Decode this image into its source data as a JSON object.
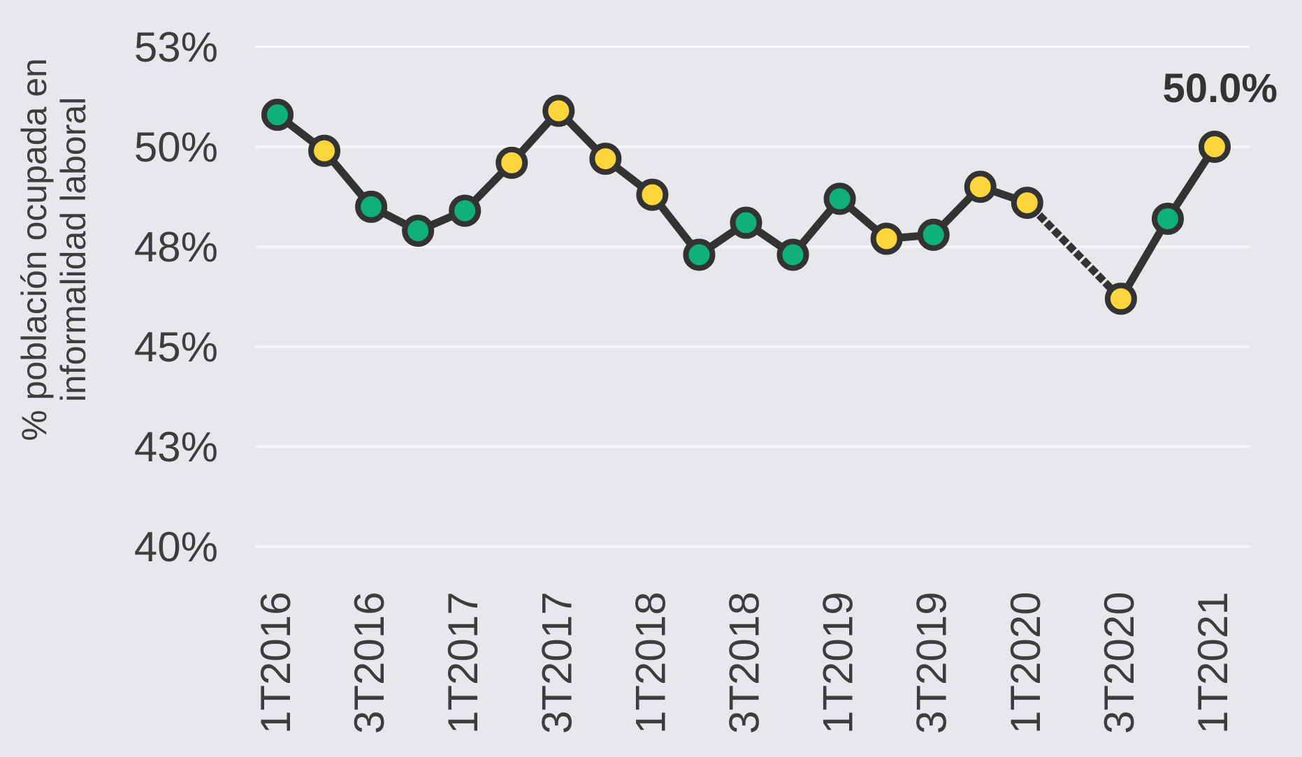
{
  "chart_data": {
    "type": "line",
    "title": "",
    "ylabel": "% población ocupada en informalidad laboral",
    "ylabel_lines": [
      "% población ocupada en",
      "informalidad laboral"
    ],
    "x": [
      "1T2016",
      "2T2016",
      "3T2016",
      "4T2016",
      "1T2017",
      "2T2017",
      "3T2017",
      "4T2017",
      "1T2018",
      "2T2018",
      "3T2018",
      "4T2018",
      "1T2019",
      "2T2019",
      "3T2019",
      "4T2019",
      "1T2020",
      "2T2020",
      "3T2020",
      "4T2020",
      "1T2021"
    ],
    "values": [
      50.8,
      49.9,
      48.5,
      47.9,
      48.4,
      49.6,
      50.9,
      49.7,
      48.8,
      47.3,
      48.1,
      47.3,
      48.7,
      47.7,
      47.8,
      49.0,
      48.6,
      null,
      46.2,
      48.2,
      50.0
    ],
    "point_colors": [
      "green",
      "yellow",
      "green",
      "green",
      "green",
      "yellow",
      "yellow",
      "yellow",
      "yellow",
      "green",
      "green",
      "green",
      "green",
      "yellow",
      "green",
      "yellow",
      "yellow",
      null,
      "yellow",
      "green",
      "yellow"
    ],
    "missing_quarters": [
      "2T2020"
    ],
    "gap_style": "dotted",
    "x_tick_labels": [
      "1T2016",
      "3T2016",
      "1T2017",
      "3T2017",
      "1T2018",
      "3T2018",
      "1T2019",
      "3T2019",
      "1T2020",
      "3T2020",
      "1T2021"
    ],
    "y_ticks": [
      {
        "label": "53%",
        "value": 52.5
      },
      {
        "label": "50%",
        "value": 50
      },
      {
        "label": "48%",
        "value": 47.5
      },
      {
        "label": "45%",
        "value": 45
      },
      {
        "label": "43%",
        "value": 42.5
      },
      {
        "label": "40%",
        "value": 40
      }
    ],
    "ylim": [
      39.1,
      53.0
    ],
    "grid": true,
    "legend": "none",
    "annotation": {
      "text": "50.0%",
      "points_to": "1T2021"
    },
    "colors": {
      "green": "#10b07d",
      "yellow": "#fdd53c",
      "line": "#333333",
      "grid": "#f7f6f9",
      "background": "#e8e7ec",
      "text": "#3d3d3d"
    }
  }
}
